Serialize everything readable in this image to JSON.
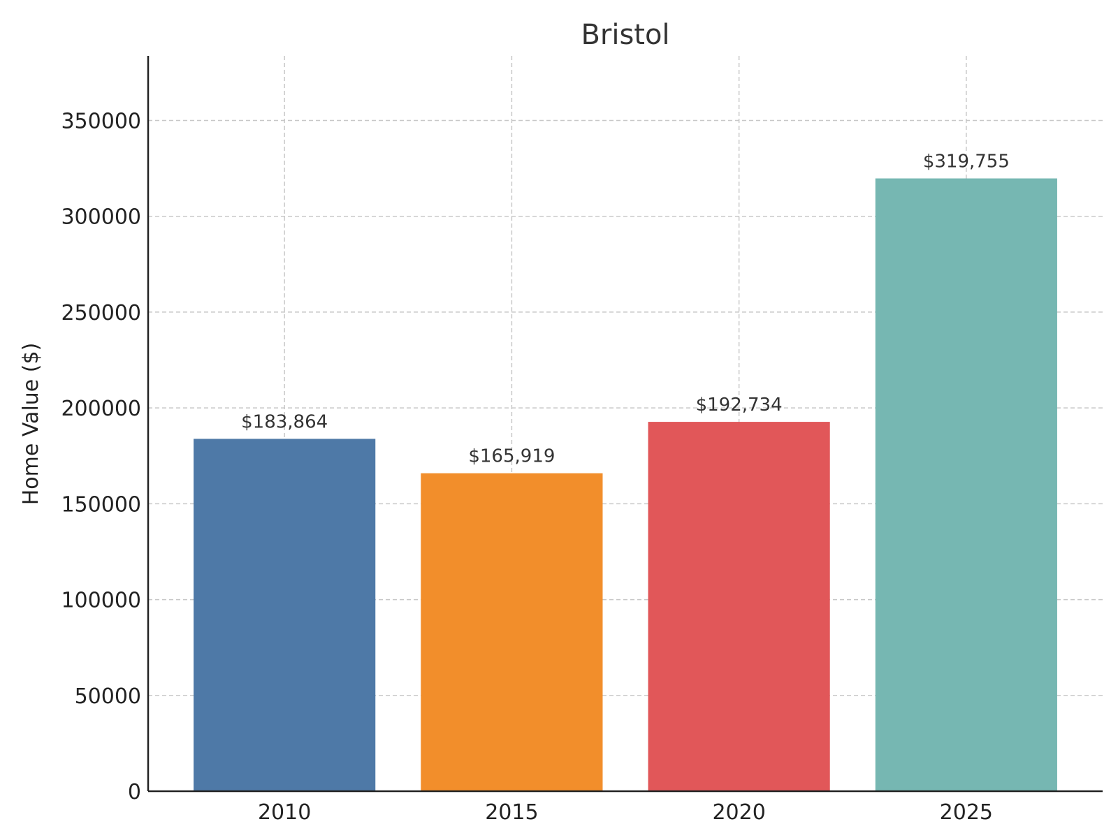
{
  "chart_data": {
    "type": "bar",
    "title": "Bristol",
    "xlabel": "",
    "ylabel": "Home Value ($)",
    "categories": [
      "2010",
      "2015",
      "2020",
      "2025"
    ],
    "values": [
      183864,
      165919,
      192734,
      319755
    ],
    "data_labels": [
      "$183,864",
      "$165,919",
      "$192,734",
      "$319,755"
    ],
    "colors": [
      "#4e79a7",
      "#f28e2b",
      "#e15759",
      "#76b7b2"
    ],
    "ylim": [
      0,
      383706
    ],
    "yticks": [
      0,
      50000,
      100000,
      150000,
      200000,
      250000,
      300000,
      350000
    ],
    "ytick_labels": [
      "0",
      "50000",
      "100000",
      "150000",
      "200000",
      "250000",
      "300000",
      "350000"
    ],
    "grid": true,
    "legend": "none"
  }
}
